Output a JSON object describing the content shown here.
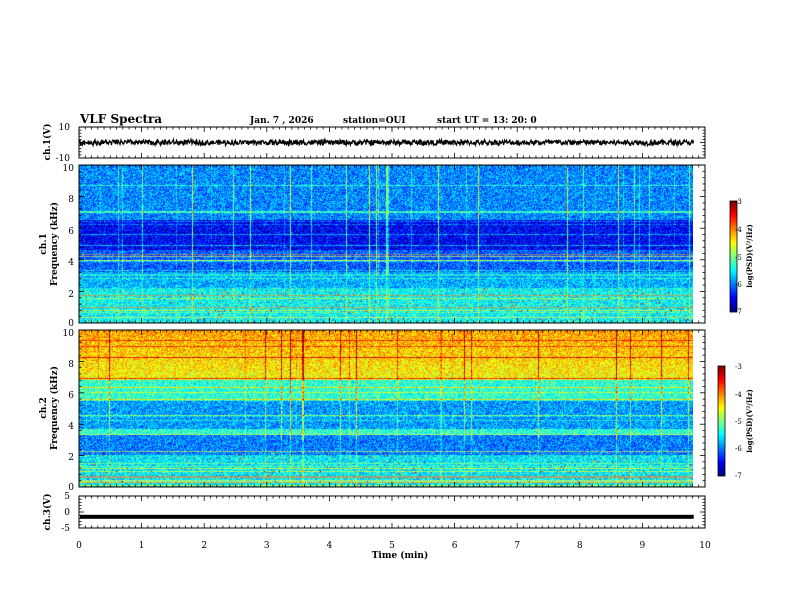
{
  "header": {
    "title": "VLF Spectra",
    "date": "Jan. 7 , 2026",
    "station": "station=OUI",
    "start": "start UT =  13: 20: 0"
  },
  "chart_data": {
    "type": "spectrogram",
    "title": "VLF Spectra",
    "xlabel": "Time (min)",
    "xlim": [
      0,
      10
    ],
    "x_ticks": [
      "0",
      "1",
      "2",
      "3",
      "4",
      "5",
      "6",
      "7",
      "8",
      "9",
      "10"
    ],
    "data_end_min": 9.82,
    "panels": {
      "ch1_wave": {
        "ylabel": "ch.1(V)",
        "ylim": [
          -10,
          10
        ],
        "y_ticks": [
          "10",
          "-10"
        ],
        "level": 0,
        "amplitude": 2.2
      },
      "ch1_spec": {
        "ylabel_top": "ch.1",
        "ylabel": "Frequency (kHz)",
        "ylim": [
          0,
          10
        ],
        "y_ticks": [
          "0",
          "2",
          "4",
          "6",
          "8",
          "10"
        ],
        "colorbar": {
          "label": "log(PSD)(V²/Hz)",
          "range": [
            -7,
            -3
          ],
          "ticks": [
            "-3",
            "-4",
            "-5",
            "-6",
            "-7"
          ]
        }
      },
      "ch2_spec": {
        "ylabel_top": "ch.2",
        "ylabel": "Frequency (kHz)",
        "ylim": [
          0,
          10
        ],
        "y_ticks": [
          "0",
          "2",
          "4",
          "6",
          "8",
          "10"
        ],
        "colorbar": {
          "label": "log(PSD)(V²/Hz)",
          "range": [
            -7,
            -3
          ],
          "ticks": [
            "-3",
            "-4",
            "-5",
            "-6",
            "-7"
          ]
        }
      },
      "ch3_wave": {
        "ylabel": "ch.3(V)",
        "ylim": [
          -5,
          5
        ],
        "y_ticks": [
          "5",
          "0",
          "-5"
        ],
        "level": -1.5
      }
    }
  }
}
